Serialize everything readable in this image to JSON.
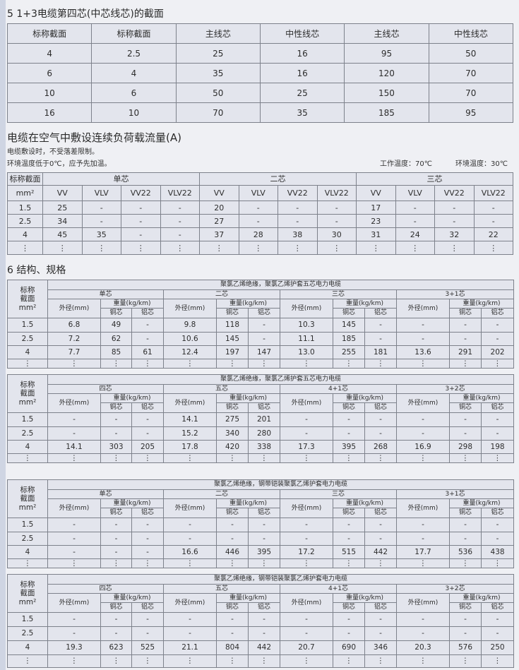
{
  "section5": {
    "title": "5  1+3电缆第四芯(中芯线芯)的截面",
    "headers": [
      "标称截面",
      "标称截面",
      "主线芯",
      "中性线芯",
      "主线芯",
      "中性线芯"
    ],
    "rows": [
      [
        "4",
        "2.5",
        "25",
        "16",
        "95",
        "50"
      ],
      [
        "6",
        "4",
        "35",
        "16",
        "120",
        "70"
      ],
      [
        "10",
        "6",
        "50",
        "25",
        "150",
        "70"
      ],
      [
        "16",
        "10",
        "70",
        "35",
        "185",
        "95"
      ]
    ]
  },
  "ampacity": {
    "title": "电缆在空气中敷设连续负荷载流量(A)",
    "note1": "电缆敷设时，不受落差限制。",
    "note2": "环境温度低于0℃，应予先加温。",
    "work_temp": "工作温度：70℃",
    "env_temp": "环境温度：30℃",
    "corner_top": "标称截面",
    "corner_bottom": "mm²",
    "groups": [
      "单芯",
      "二芯",
      "三芯"
    ],
    "types": [
      "VV",
      "VLV",
      "VV22",
      "VLV22"
    ],
    "rows": [
      [
        "1.5",
        "25",
        "-",
        "-",
        "-",
        "20",
        "-",
        "-",
        "-",
        "17",
        "-",
        "-",
        "-"
      ],
      [
        "2.5",
        "34",
        "-",
        "-",
        "-",
        "27",
        "-",
        "-",
        "-",
        "23",
        "-",
        "-",
        "-"
      ],
      [
        "4",
        "45",
        "35",
        "-",
        "-",
        "37",
        "28",
        "38",
        "30",
        "31",
        "24",
        "32",
        "22"
      ],
      [
        "⋮",
        "⋮",
        "⋮",
        "⋮",
        "⋮",
        "⋮",
        "⋮",
        "⋮",
        "⋮",
        "⋮",
        "⋮",
        "⋮",
        "⋮"
      ]
    ]
  },
  "section6": {
    "title": "6  结构、规格",
    "corner": [
      "标称",
      "截面",
      "mm²"
    ],
    "od_label": "外径(mm)",
    "weight_label": "重量(kg/km)",
    "cu_label": "铜芯",
    "al_label": "铝芯",
    "tables": [
      {
        "title": "聚氯乙烯绝缘，聚氯乙烯护套五芯电力电缆",
        "groups": [
          "单芯",
          "二芯",
          "三芯",
          "3+1芯"
        ],
        "rows": [
          [
            "1.5",
            "6.8",
            "49",
            "-",
            "9.8",
            "118",
            "-",
            "10.3",
            "145",
            "-",
            "-",
            "-",
            "-"
          ],
          [
            "2.5",
            "7.2",
            "62",
            "-",
            "10.6",
            "145",
            "-",
            "11.1",
            "185",
            "-",
            "-",
            "-",
            "-"
          ],
          [
            "4",
            "7.7",
            "85",
            "61",
            "12.4",
            "197",
            "147",
            "13.0",
            "255",
            "181",
            "13.6",
            "291",
            "202"
          ],
          [
            "⋮",
            "⋮",
            "⋮",
            "⋮",
            "⋮",
            "⋮",
            "⋮",
            "⋮",
            "⋮",
            "⋮",
            "⋮",
            "⋮",
            "⋮"
          ]
        ]
      },
      {
        "title": "聚氯乙烯绝缘，聚氯乙烯护套五芯电力电缆",
        "groups": [
          "四芯",
          "五芯",
          "4+1芯",
          "3+2芯"
        ],
        "rows": [
          [
            "1.5",
            "-",
            "-",
            "-",
            "14.1",
            "275",
            "201",
            "-",
            "-",
            "-",
            "-",
            "-",
            "-"
          ],
          [
            "2.5",
            "-",
            "-",
            "-",
            "15.2",
            "340",
            "280",
            "-",
            "-",
            "-",
            "-",
            "-",
            "-"
          ],
          [
            "4",
            "14.1",
            "303",
            "205",
            "17.8",
            "420",
            "338",
            "17.3",
            "395",
            "268",
            "16.9",
            "298",
            "198"
          ],
          [
            "⋮",
            "⋮",
            "⋮",
            "⋮",
            "⋮",
            "⋮",
            "⋮",
            "⋮",
            "⋮",
            "⋮",
            "⋮",
            "⋮",
            "⋮"
          ]
        ]
      },
      {
        "title": "聚氯乙烯绝缘，钢带铠装聚氯乙烯护套电力电缆",
        "groups": [
          "单芯",
          "二芯",
          "三芯",
          "3+1芯"
        ],
        "rows": [
          [
            "1.5",
            "-",
            "-",
            "-",
            "-",
            "-",
            "-",
            "-",
            "-",
            "-",
            "-",
            "-",
            "-"
          ],
          [
            "2.5",
            "-",
            "-",
            "-",
            "-",
            "-",
            "-",
            "-",
            "-",
            "-",
            "-",
            "-",
            "-"
          ],
          [
            "4",
            "-",
            "-",
            "-",
            "16.6",
            "446",
            "395",
            "17.2",
            "515",
            "442",
            "17.7",
            "536",
            "438"
          ],
          [
            "⋮",
            "⋮",
            "⋮",
            "⋮",
            "⋮",
            "⋮",
            "⋮",
            "⋮",
            "⋮",
            "⋮",
            "⋮",
            "⋮",
            "⋮"
          ]
        ]
      },
      {
        "title": "聚氯乙烯绝缘，钢带铠装聚氯乙烯护套电力电缆",
        "groups": [
          "四芯",
          "五芯",
          "4+1芯",
          "3+2芯"
        ],
        "rows": [
          [
            "1.5",
            "-",
            "-",
            "-",
            "-",
            "-",
            "-",
            "-",
            "-",
            "-",
            "-",
            "-",
            "-"
          ],
          [
            "2.5",
            "-",
            "-",
            "-",
            "-",
            "-",
            "-",
            "-",
            "-",
            "-",
            "-",
            "-",
            "-"
          ],
          [
            "4",
            "19.3",
            "623",
            "525",
            "21.1",
            "804",
            "442",
            "20.7",
            "690",
            "346",
            "20.3",
            "576",
            "250"
          ],
          [
            "⋮",
            "⋮",
            "⋮",
            "⋮",
            "⋮",
            "⋮",
            "⋮",
            "⋮",
            "⋮",
            "⋮",
            "⋮",
            "⋮",
            "⋮"
          ]
        ]
      }
    ]
  }
}
